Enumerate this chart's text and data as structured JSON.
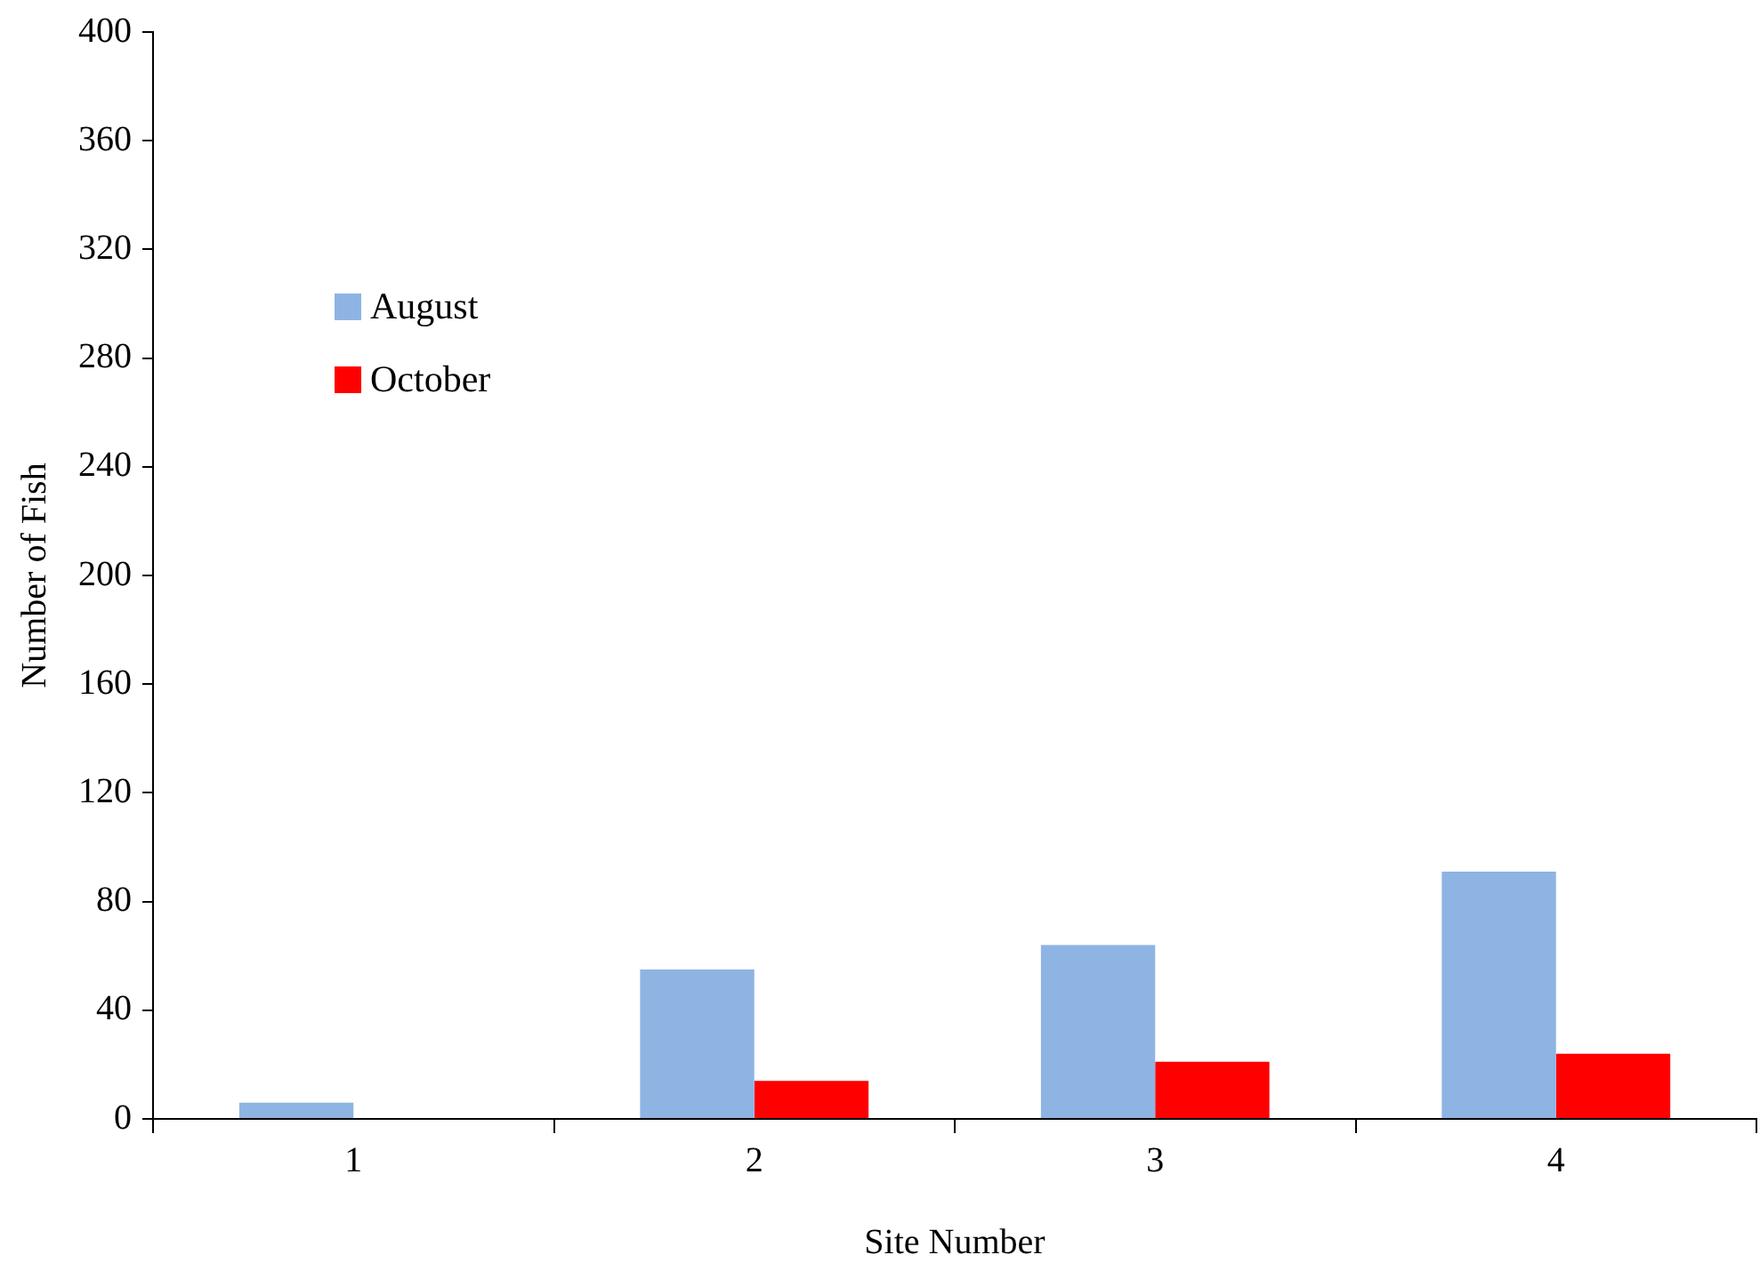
{
  "chart_data": {
    "type": "bar",
    "xlabel": "Site Number",
    "ylabel": "Number of Fish",
    "categories": [
      "1",
      "2",
      "3",
      "4"
    ],
    "series": [
      {
        "name": "August",
        "color": "#8eb4e3",
        "values": [
          6,
          55,
          64,
          91
        ]
      },
      {
        "name": "October",
        "color": "#ff0000",
        "values": [
          0,
          14,
          21,
          24
        ]
      }
    ],
    "ylim": [
      0,
      400
    ],
    "yticks": [
      0,
      40,
      80,
      120,
      160,
      200,
      240,
      280,
      320,
      360,
      400
    ],
    "grid": false,
    "legend": "top left"
  }
}
